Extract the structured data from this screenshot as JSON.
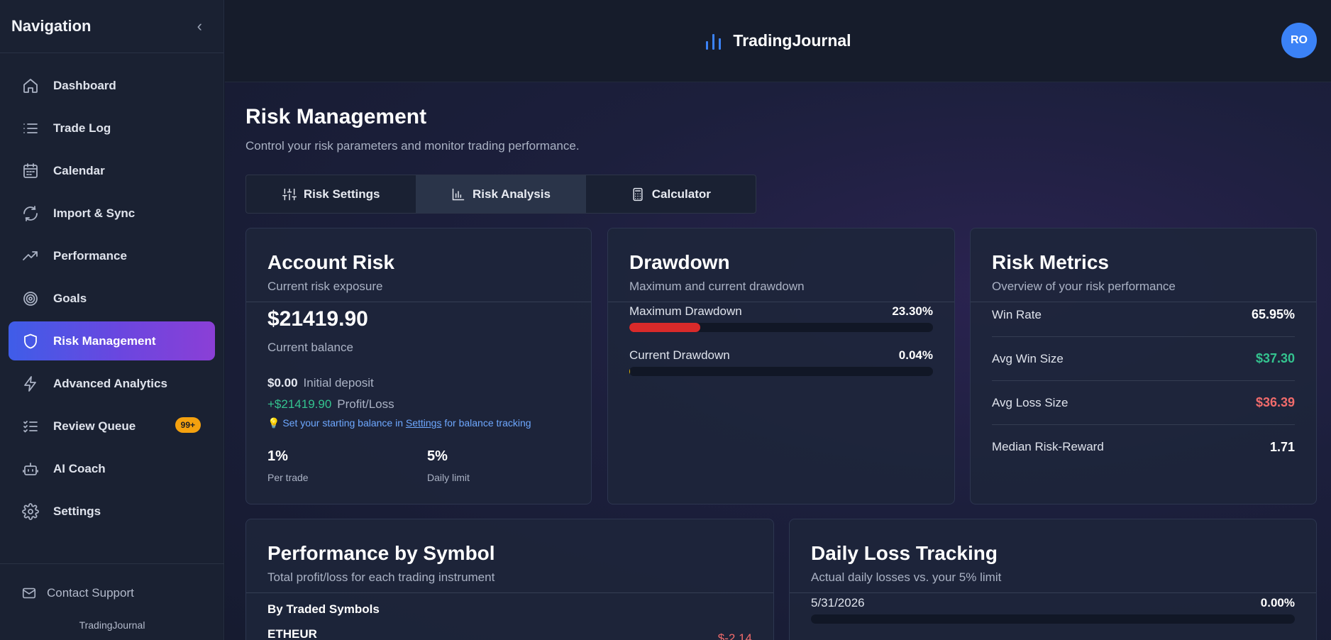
{
  "sidebar": {
    "title": "Navigation",
    "collapse_icon": "chevron-left-icon",
    "items": [
      {
        "label": "Dashboard",
        "icon": "home-icon"
      },
      {
        "label": "Trade Log",
        "icon": "list-icon"
      },
      {
        "label": "Calendar",
        "icon": "calendar-icon"
      },
      {
        "label": "Import & Sync",
        "icon": "refresh-icon"
      },
      {
        "label": "Performance",
        "icon": "trend-up-icon"
      },
      {
        "label": "Goals",
        "icon": "target-icon"
      },
      {
        "label": "Risk Management",
        "icon": "shield-icon",
        "active": true
      },
      {
        "label": "Advanced Analytics",
        "icon": "lightning-icon"
      },
      {
        "label": "Review Queue",
        "icon": "checklist-icon",
        "badge": "99+"
      },
      {
        "label": "AI Coach",
        "icon": "bot-icon"
      },
      {
        "label": "Settings",
        "icon": "gear-icon"
      }
    ],
    "support_label": "Contact Support",
    "footer_brand": "TradingJournal"
  },
  "header": {
    "brand": "TradingJournal",
    "avatar_initials": "RO"
  },
  "page": {
    "title": "Risk Management",
    "subtitle": "Control your risk parameters and monitor trading performance."
  },
  "tabs": [
    {
      "label": "Risk Settings",
      "icon": "sliders-icon"
    },
    {
      "label": "Risk Analysis",
      "icon": "bar-chart-icon",
      "active": true
    },
    {
      "label": "Calculator",
      "icon": "calculator-icon"
    }
  ],
  "account_risk": {
    "title": "Account Risk",
    "subtitle": "Current risk exposure",
    "balance": "$21419.90",
    "balance_label": "Current balance",
    "initial_value": "$0.00",
    "initial_label": "Initial deposit",
    "pl_value": "+$21419.90",
    "pl_label": "Profit/Loss",
    "tip_prefix": "Set your starting balance in",
    "tip_link": "Settings",
    "tip_suffix": "for balance tracking",
    "per_trade_value": "1%",
    "per_trade_label": "Per trade",
    "daily_limit_value": "5%",
    "daily_limit_label": "Daily limit"
  },
  "drawdown": {
    "title": "Drawdown",
    "subtitle": "Maximum and current drawdown",
    "max_label": "Maximum Drawdown",
    "max_value": "23.30%",
    "max_fraction": 0.233,
    "current_label": "Current Drawdown",
    "current_value": "0.04%",
    "current_fraction": 0.0004,
    "colors": {
      "max": "#d92a2a",
      "current": "#e0b400"
    }
  },
  "risk_metrics": {
    "title": "Risk Metrics",
    "subtitle": "Overview of your risk performance",
    "rows": [
      {
        "label": "Win Rate",
        "value": "65.95%"
      },
      {
        "label": "Avg Win Size",
        "value": "$37.30"
      },
      {
        "label": "Avg Loss Size",
        "value": "$36.39"
      },
      {
        "label": "Median Risk-Reward",
        "value": "1.71"
      }
    ]
  },
  "performance_by_symbol": {
    "title": "Performance by Symbol",
    "subtitle": "Total profit/loss for each trading instrument",
    "section": "By Traded Symbols",
    "symbols": [
      {
        "name": "ETHEUR",
        "value": "$-2.14"
      }
    ]
  },
  "daily_loss": {
    "title": "Daily Loss Tracking",
    "subtitle": "Actual daily losses vs. your 5% limit",
    "rows": [
      {
        "date": "5/31/2026",
        "value": "0.00%",
        "fraction": 0
      }
    ]
  },
  "colors": {
    "accent_start": "#3f5de8",
    "accent_end": "#8b3fd6",
    "positive": "#34c38f",
    "negative": "#f06b6b",
    "badge": "#f4a10f",
    "avatar": "#3b82f6"
  }
}
